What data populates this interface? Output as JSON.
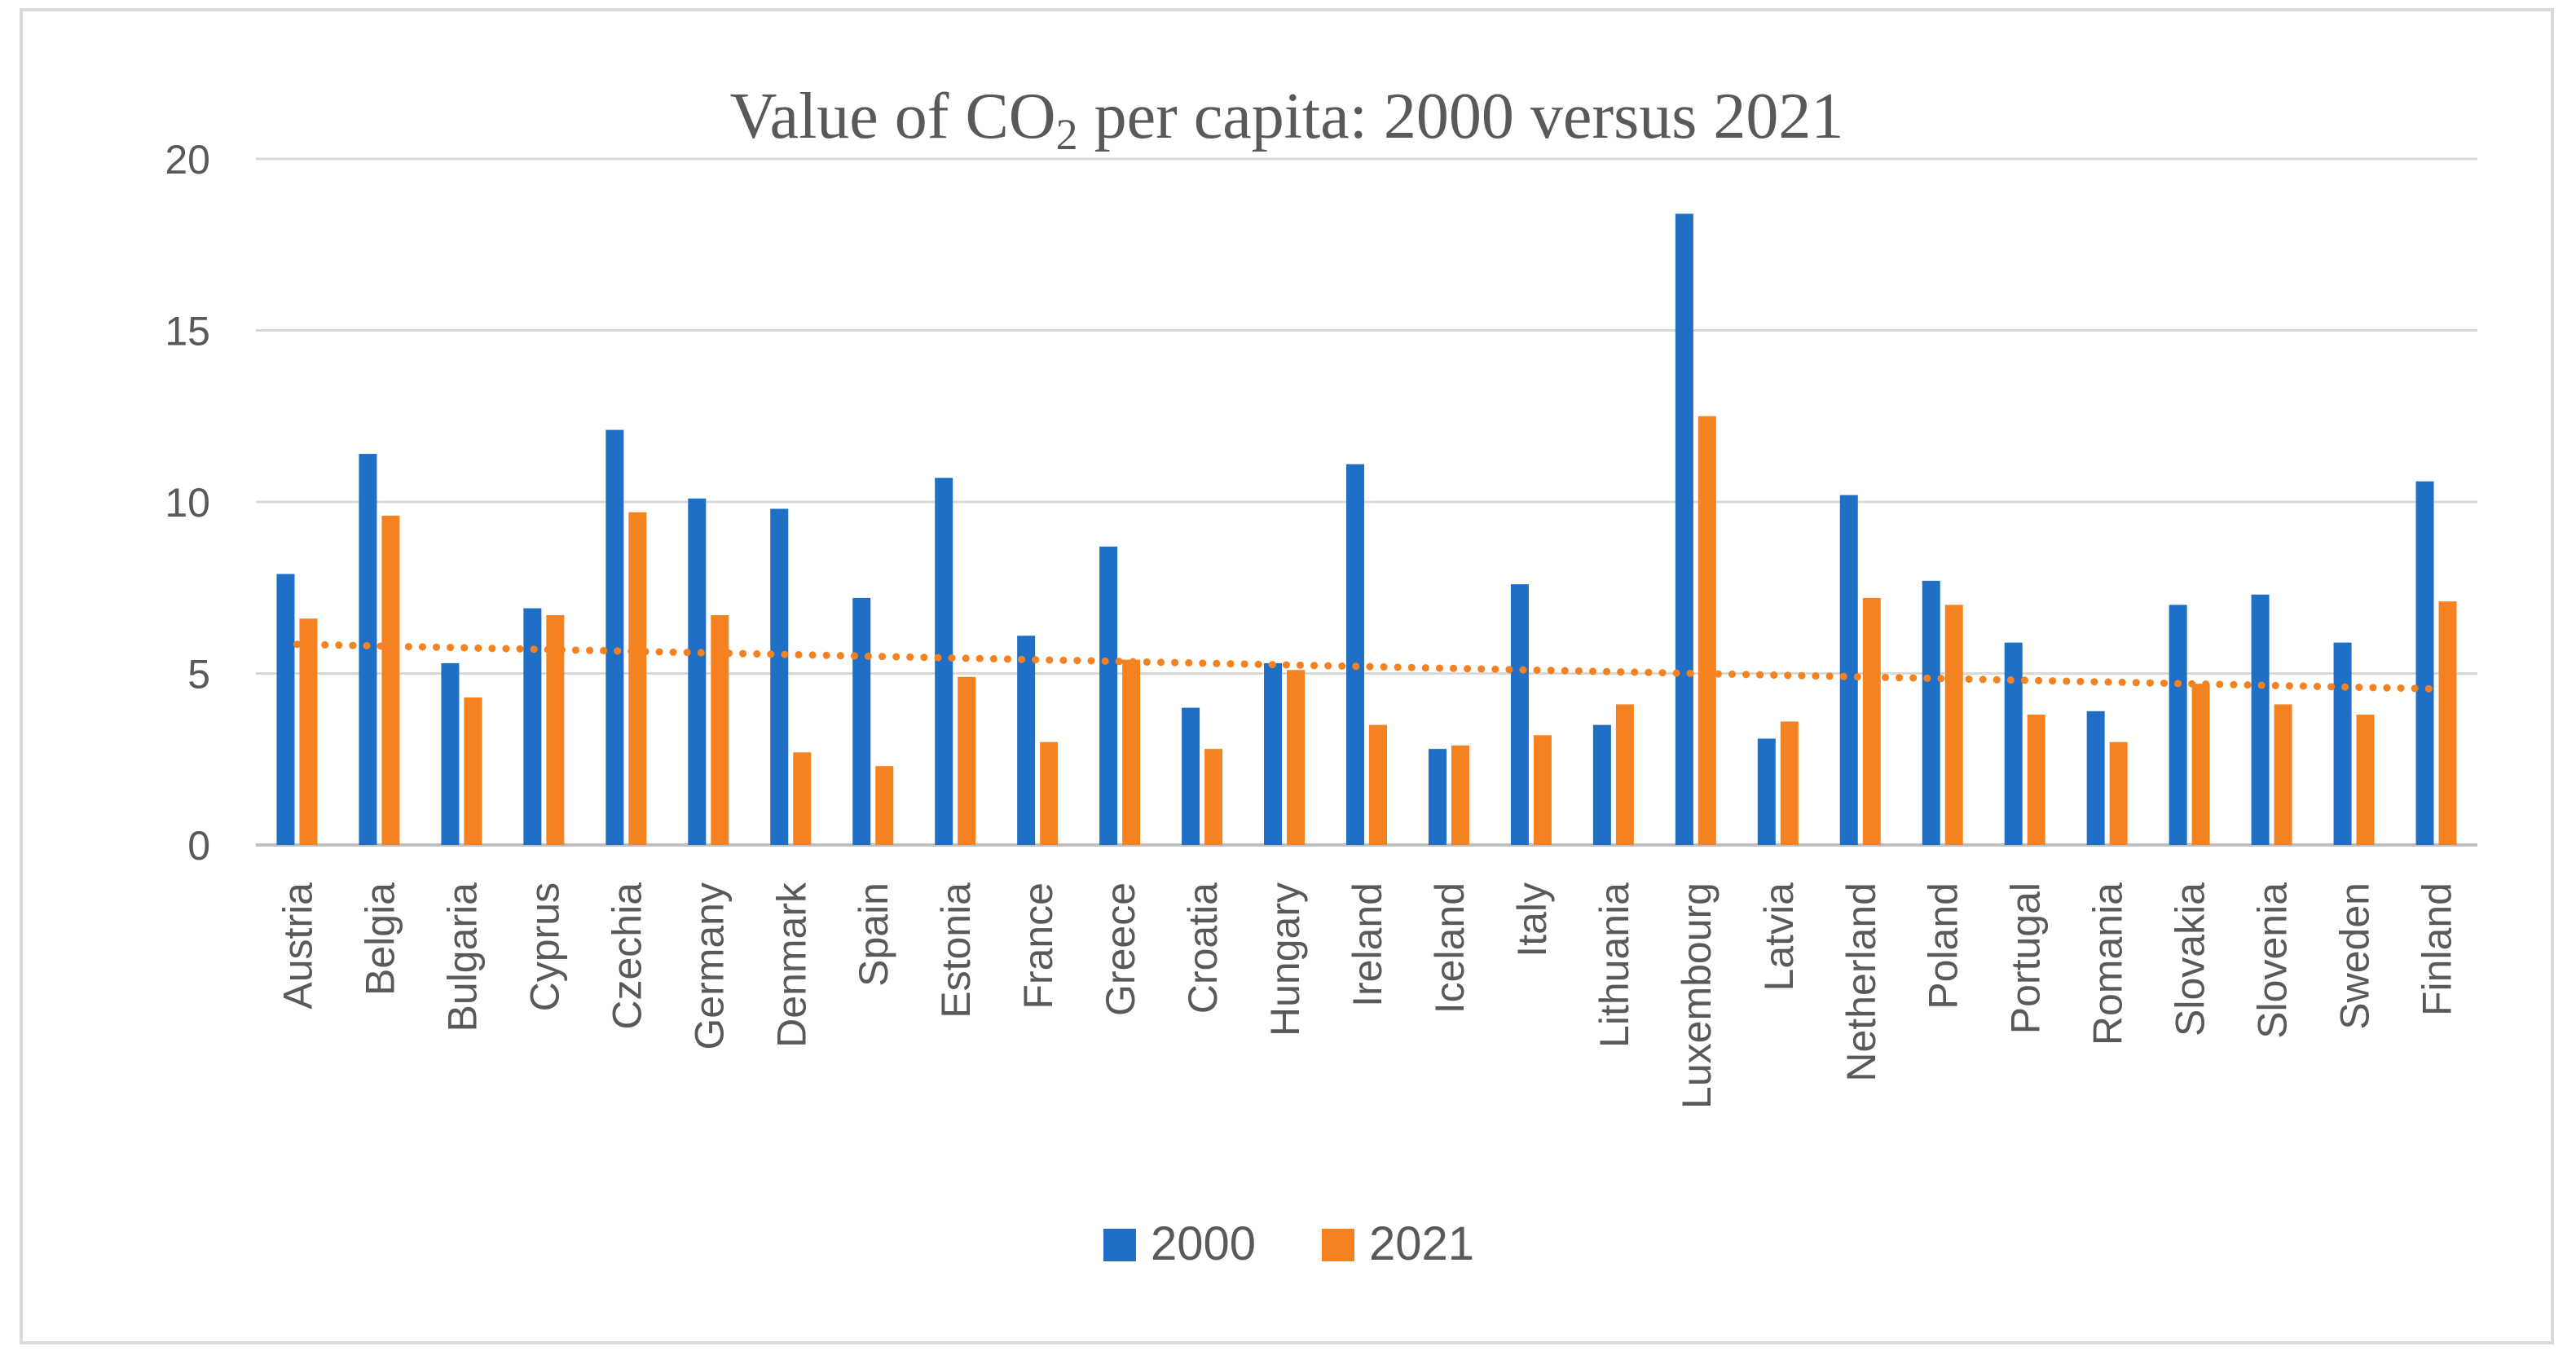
{
  "chart_data": {
    "type": "bar",
    "title": "Value of CO",
    "title_subscript": "2",
    "title_suffix": " per capita: 2000 versus 2021",
    "xlabel": "",
    "ylabel": "",
    "ylim": [
      0,
      20
    ],
    "yticks": [
      0,
      5,
      10,
      15,
      20
    ],
    "grid": true,
    "legend_position": "bottom-center",
    "categories": [
      "Austria",
      "Belgia",
      "Bulgaria",
      "Cyprus",
      "Czechia",
      "Germany",
      "Denmark",
      "Spain",
      "Estonia",
      "France",
      "Greece",
      "Croatia",
      "Hungary",
      "Ireland",
      "Iceland",
      "Italy",
      "Lithuania",
      "Luxembourg",
      "Latvia",
      "Netherland",
      "Poland",
      "Portugal",
      "Romania",
      "Slovakia",
      "Slovenia",
      "Sweden",
      "Finland"
    ],
    "series": [
      {
        "name": "2000",
        "color": "#1f6fc6",
        "values": [
          7.9,
          11.4,
          5.3,
          6.9,
          12.1,
          10.1,
          9.8,
          7.2,
          10.7,
          6.1,
          8.7,
          4.0,
          5.3,
          11.1,
          2.8,
          7.6,
          3.5,
          18.4,
          3.1,
          10.2,
          7.7,
          5.9,
          3.9,
          7.0,
          7.3,
          5.9,
          10.6
        ]
      },
      {
        "name": "2021",
        "color": "#f58220",
        "values": [
          6.6,
          9.6,
          4.3,
          6.7,
          9.7,
          6.7,
          2.7,
          2.3,
          4.9,
          3.0,
          5.4,
          2.8,
          5.1,
          3.5,
          2.9,
          3.2,
          4.1,
          12.5,
          3.6,
          7.2,
          7.0,
          3.8,
          3.0,
          4.7,
          4.1,
          3.8,
          7.1
        ]
      }
    ],
    "trendline": {
      "series": "2021",
      "type": "linear",
      "style": "dotted",
      "color": "#f58220",
      "start": 5.85,
      "end": 4.55
    }
  }
}
